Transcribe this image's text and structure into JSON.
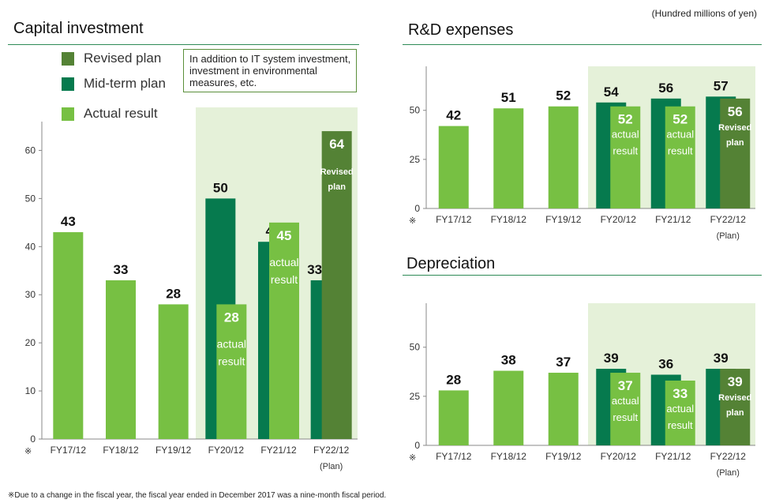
{
  "unit_note": "(Hundred millions of yen)",
  "footnote": "※Due to a change in the fiscal year, the fiscal year ended in December 2017 was a nine-month fiscal period.",
  "colors": {
    "actual": "#77c043",
    "midterm": "#067a4e",
    "revised": "#548235",
    "plan_bg": "#e5f1d9",
    "rule": "#2e8b57"
  },
  "legend": {
    "revised_label": "Revised plan",
    "midterm_label": "Mid-term plan",
    "actual_label": "Actual result"
  },
  "callout": "In addition to IT system investment, investment in environmental measures, etc.",
  "chart_data": [
    {
      "type": "bar",
      "title": "Capital investment",
      "categories": [
        "FY17/12",
        "FY18/12",
        "FY19/12",
        "FY20/12",
        "FY21/12",
        "FY22/12"
      ],
      "footnote_marker": "※",
      "plan_label": "(Plan)",
      "ylim": [
        0,
        65
      ],
      "yticks": [
        0,
        10,
        20,
        30,
        40,
        50,
        60
      ],
      "series": [
        {
          "name": "Actual result",
          "values": [
            43,
            33,
            28,
            28,
            45,
            null
          ],
          "labels": [
            "",
            "",
            "",
            "actual result",
            "actual result",
            ""
          ]
        },
        {
          "name": "Mid-term plan",
          "values": [
            null,
            null,
            null,
            50,
            41,
            33
          ]
        },
        {
          "name": "Revised plan",
          "values": [
            null,
            null,
            null,
            null,
            null,
            64
          ],
          "labels": [
            "",
            "",
            "",
            "",
            "",
            "Revised plan"
          ]
        }
      ]
    },
    {
      "type": "bar",
      "title": "R&D expenses",
      "categories": [
        "FY17/12",
        "FY18/12",
        "FY19/12",
        "FY20/12",
        "FY21/12",
        "FY22/12"
      ],
      "footnote_marker": "※",
      "plan_label": "(Plan)",
      "ylim": [
        0,
        70
      ],
      "yticks": [
        0,
        25,
        50
      ],
      "series": [
        {
          "name": "Actual result",
          "values": [
            42,
            51,
            52,
            52,
            52,
            null
          ],
          "labels": [
            "",
            "",
            "",
            "actual result",
            "actual result",
            ""
          ]
        },
        {
          "name": "Mid-term plan",
          "values": [
            null,
            null,
            null,
            54,
            56,
            57
          ]
        },
        {
          "name": "Revised plan",
          "values": [
            null,
            null,
            null,
            null,
            null,
            56
          ],
          "labels": [
            "",
            "",
            "",
            "",
            "",
            "Revised plan"
          ]
        }
      ]
    },
    {
      "type": "bar",
      "title": "Depreciation",
      "categories": [
        "FY17/12",
        "FY18/12",
        "FY19/12",
        "FY20/12",
        "FY21/12",
        "FY22/12"
      ],
      "footnote_marker": "※",
      "plan_label": "(Plan)",
      "ylim": [
        0,
        70
      ],
      "yticks": [
        0,
        25,
        50
      ],
      "series": [
        {
          "name": "Actual result",
          "values": [
            28,
            38,
            37,
            37,
            33,
            null
          ],
          "labels": [
            "",
            "",
            "",
            "actual result",
            "actual result",
            ""
          ]
        },
        {
          "name": "Mid-term plan",
          "values": [
            null,
            null,
            null,
            39,
            36,
            39
          ]
        },
        {
          "name": "Revised plan",
          "values": [
            null,
            null,
            null,
            null,
            null,
            39
          ],
          "labels": [
            "",
            "",
            "",
            "",
            "",
            "Revised plan"
          ]
        }
      ]
    }
  ]
}
